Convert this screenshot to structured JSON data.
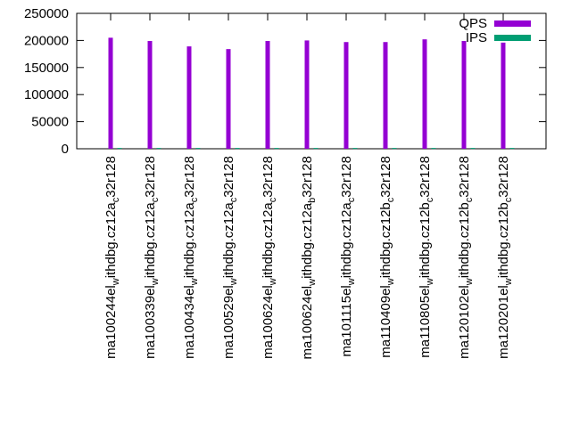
{
  "chart_data": {
    "type": "bar",
    "title": "",
    "xlabel": "",
    "ylabel": "",
    "ylim": [
      0,
      250000
    ],
    "yticks": [
      0,
      50000,
      100000,
      150000,
      200000,
      250000
    ],
    "grid": false,
    "legend_position": "top-right",
    "categories": [
      {
        "base": "ma100244el",
        "sub": "w",
        "rest": "ithdbg.cz12a",
        "sub2": "c",
        "tail": "32r128"
      },
      {
        "base": "ma100339el",
        "sub": "w",
        "rest": "ithdbg.cz12a",
        "sub2": "c",
        "tail": "32r128"
      },
      {
        "base": "ma100434el",
        "sub": "w",
        "rest": "ithdbg.cz12a",
        "sub2": "c",
        "tail": "32r128"
      },
      {
        "base": "ma100529el",
        "sub": "w",
        "rest": "ithdbg.cz12a",
        "sub2": "c",
        "tail": "32r128"
      },
      {
        "base": "ma100624el",
        "sub": "w",
        "rest": "ithdbg.cz12a",
        "sub2": "c",
        "tail": "32r128"
      },
      {
        "base": "ma100624el",
        "sub": "w",
        "rest": "ithdbg.cz12a",
        "sub2": "b",
        "tail": "32r128"
      },
      {
        "base": "ma101115el",
        "sub": "w",
        "rest": "ithdbg.cz12a",
        "sub2": "c",
        "tail": "32r128"
      },
      {
        "base": "ma110409el",
        "sub": "w",
        "rest": "ithdbg.cz12b",
        "sub2": "c",
        "tail": "32r128"
      },
      {
        "base": "ma110805el",
        "sub": "w",
        "rest": "ithdbg.cz12b",
        "sub2": "c",
        "tail": "32r128"
      },
      {
        "base": "ma120102el",
        "sub": "w",
        "rest": "ithdbg.cz12b",
        "sub2": "c",
        "tail": "32r128"
      },
      {
        "base": "ma120201el",
        "sub": "w",
        "rest": "ithdbg.cz12b",
        "sub2": "c",
        "tail": "32r128"
      }
    ],
    "series": [
      {
        "name": "QPS",
        "color": "#9400d3",
        "values": [
          205000,
          199000,
          189000,
          184000,
          199000,
          200000,
          197000,
          197000,
          202000,
          199000,
          196000
        ]
      },
      {
        "name": "IPS",
        "color": "#009e73",
        "values": [
          1500,
          1500,
          1500,
          1500,
          1500,
          1500,
          1500,
          1500,
          1500,
          1500,
          1500
        ]
      }
    ]
  }
}
